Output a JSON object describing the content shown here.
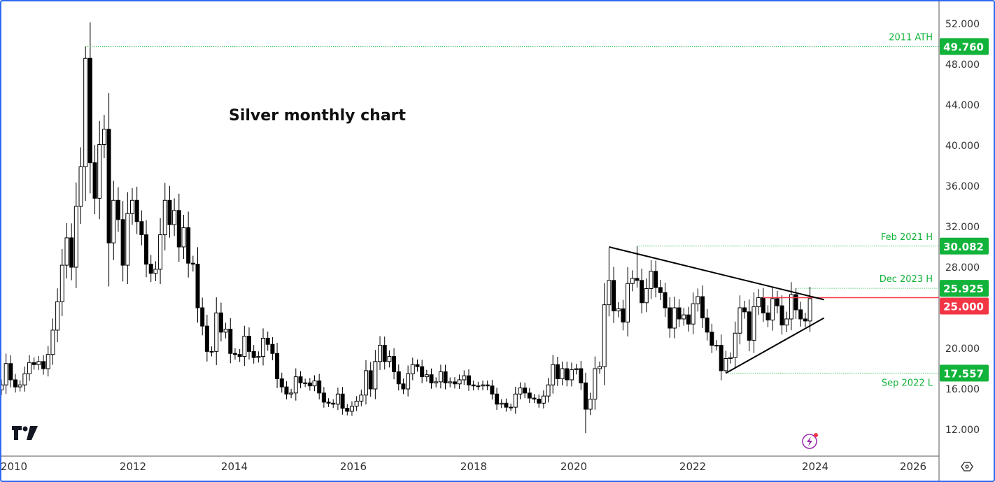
{
  "chart_data": {
    "type": "candlestick",
    "title": "Silver monthly chart",
    "start_month": "2009-10",
    "closes": [
      16.4,
      18.5,
      16.9,
      16.2,
      16.4,
      17.5,
      18.6,
      18.4,
      18.7,
      18.0,
      19.4,
      21.8,
      24.6,
      28.2,
      30.9,
      28.0,
      34.0,
      37.9,
      48.6,
      38.3,
      34.8,
      40.1,
      41.6,
      30.4,
      34.6,
      32.7,
      28.2,
      33.3,
      34.6,
      32.5,
      31.2,
      28.3,
      27.4,
      27.8,
      31.2,
      34.6,
      32.2,
      33.6,
      30.0,
      31.9,
      28.4,
      28.3,
      24.0,
      22.2,
      19.7,
      19.7,
      23.5,
      21.6,
      21.9,
      19.5,
      19.4,
      19.2,
      21.2,
      19.7,
      19.1,
      19.2,
      21.0,
      20.4,
      19.5,
      17.0,
      16.2,
      15.5,
      15.6,
      17.2,
      16.6,
      16.6,
      16.3,
      16.8,
      15.6,
      14.7,
      14.6,
      14.5,
      15.5,
      14.1,
      13.8,
      14.3,
      14.8,
      15.4,
      17.8,
      16.0,
      18.7,
      20.3,
      18.7,
      19.2,
      17.7,
      16.5,
      16.0,
      17.5,
      18.4,
      18.2,
      17.2,
      17.4,
      16.6,
      16.7,
      17.7,
      16.6,
      16.7,
      16.5,
      16.9,
      17.3,
      16.4,
      16.3,
      16.3,
      16.4,
      16.3,
      15.5,
      14.5,
      14.6,
      14.2,
      14.2,
      15.5,
      16.1,
      15.6,
      15.1,
      15.0,
      14.6,
      15.3,
      16.4,
      18.4,
      17.0,
      18.0,
      16.9,
      17.9,
      18.0,
      16.6,
      14.0,
      15.0,
      18.0,
      18.2,
      24.3,
      26.7,
      23.7,
      23.9,
      22.6,
      26.4,
      26.9,
      26.7,
      24.5,
      25.9,
      27.6,
      26.0,
      25.5,
      24.0,
      22.0,
      24.0,
      22.9,
      23.3,
      22.4,
      24.4,
      25.1,
      23.0,
      21.6,
      20.3,
      20.3,
      17.8,
      19.0,
      19.1,
      21.5,
      24.0,
      23.6,
      20.8,
      24.1,
      25.0,
      23.5,
      22.8,
      24.9,
      24.2,
      22.3,
      22.9,
      25.3,
      23.8,
      22.9,
      22.7,
      24.9
    ],
    "high_overrides": {
      "2011-04": 49.76,
      "2020-08": 29.9,
      "2021-02": 30.082,
      "2023-12": 25.925,
      "2021-05": 28.7
    },
    "low_overrides": {
      "2020-03": 11.64,
      "2022-09": 17.557,
      "2011-09": 26.1
    },
    "y_axis": {
      "ticks": [
        "52.000",
        "48.000",
        "44.000",
        "40.000",
        "36.000",
        "32.000",
        "28.000",
        "20.000",
        "16.000",
        "12.000"
      ],
      "range": [
        10.5,
        53.5
      ]
    },
    "x_axis": {
      "ticks": [
        "2010",
        "2012",
        "2014",
        "2016",
        "2018",
        "2020",
        "2022",
        "2024",
        "2026"
      ]
    },
    "levels": [
      {
        "label": "2011 ATH",
        "value_text": "49.760",
        "value": 49.76,
        "from": "2011-04",
        "color": "#12b33a"
      },
      {
        "label": "Feb 2021 H",
        "value_text": "30.082",
        "value": 30.082,
        "from": "2021-02",
        "color": "#12b33a"
      },
      {
        "label": "Dec 2023 H",
        "value_text": "25.925",
        "value": 25.925,
        "from": "2023-12",
        "color": "#12b33a"
      },
      {
        "label": "Sep 2022 L",
        "value_text": "17.557",
        "value": 17.557,
        "from": "2022-09",
        "color": "#12b33a"
      }
    ],
    "resistance": {
      "value_text": "25.000",
      "value": 25.0,
      "color": "#f23645"
    },
    "trendlines": [
      {
        "from": [
          "2020-08",
          30.0
        ],
        "to": [
          "2024-06",
          24.8
        ]
      },
      {
        "from": [
          "2022-09",
          17.557
        ],
        "to": [
          "2024-06",
          23.0
        ]
      }
    ],
    "colors": {
      "up": "#ffffff",
      "down": "#000000",
      "level": "#12b33a",
      "border": "#2e6af0"
    }
  },
  "icons": {
    "logo": "tradingview-logo",
    "settings": "settings-hexagon-icon",
    "flash": "lightning-icon"
  }
}
